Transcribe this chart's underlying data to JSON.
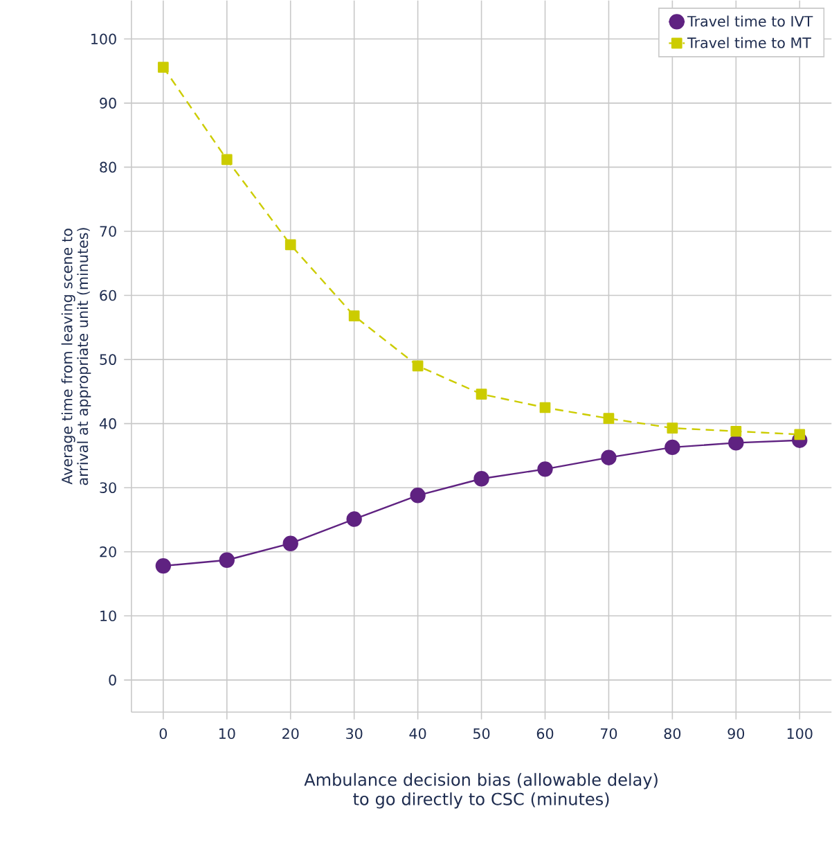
{
  "chart_data": {
    "type": "line",
    "xlabel": "Ambulance decision bias (allowable delay)\nto go directly to CSC (minutes)",
    "ylabel": "Average time from leaving scene to\narrival at appropriate unit (minutes)",
    "x": [
      0,
      10,
      20,
      30,
      40,
      50,
      60,
      70,
      80,
      90,
      100
    ],
    "series": [
      {
        "name": "Travel time to IVT",
        "color": "#5f2281",
        "marker": "circle",
        "line_style": "solid",
        "values": [
          17.8,
          18.7,
          21.3,
          25.1,
          28.8,
          31.4,
          32.9,
          34.7,
          36.3,
          37.0,
          37.4
        ]
      },
      {
        "name": "Travel time to MT",
        "color": "#cccc00",
        "marker": "square",
        "line_style": "dashed",
        "values": [
          95.6,
          81.2,
          67.9,
          56.8,
          49.0,
          44.6,
          42.5,
          40.8,
          39.3,
          38.8,
          38.3
        ]
      }
    ],
    "xlim": [
      -5,
      105
    ],
    "ylim": [
      -5,
      106
    ],
    "xticks": [
      0,
      10,
      20,
      30,
      40,
      50,
      60,
      70,
      80,
      90,
      100
    ],
    "yticks": [
      0,
      10,
      20,
      30,
      40,
      50,
      60,
      70,
      80,
      90,
      100
    ],
    "grid": true,
    "legend": "top right"
  }
}
